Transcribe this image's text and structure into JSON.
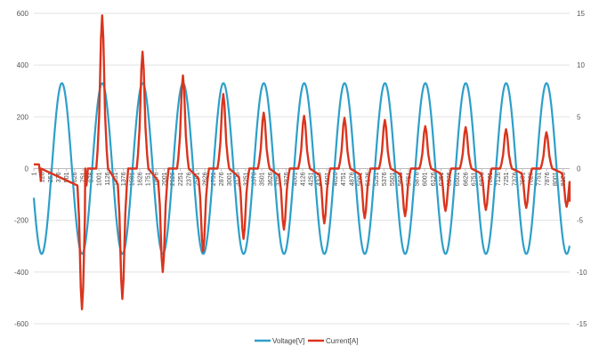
{
  "chart_data": {
    "type": "line",
    "y_left": {
      "min": -600,
      "max": 600,
      "ticks": [
        -600,
        -400,
        -200,
        0,
        200,
        400,
        600
      ],
      "tick_labels": [
        "-600",
        "-400",
        "-200",
        "0",
        "200",
        "400",
        "600"
      ]
    },
    "y_right": {
      "min": -15,
      "max": 15,
      "ticks": [
        -15,
        -10,
        -5,
        0,
        5,
        10,
        15
      ],
      "tick_labels": [
        "-15",
        "-10",
        "-5",
        "0",
        "5",
        "10",
        "15"
      ]
    },
    "x": {
      "min": 1,
      "max": 8226,
      "tick_step": 125,
      "tick_labels": [
        "1",
        "126",
        "251",
        "376",
        "501",
        "626",
        "751",
        "876",
        "1001",
        "1126",
        "1251",
        "1376",
        "1501",
        "1626",
        "1751",
        "1876",
        "2001",
        "2126",
        "2251",
        "2376",
        "2501",
        "2626",
        "2751",
        "2876",
        "3001",
        "3126",
        "3251",
        "3376",
        "3501",
        "3626",
        "3751",
        "3876",
        "4001",
        "4126",
        "4251",
        "4376",
        "4501",
        "4626",
        "4751",
        "4876",
        "5001",
        "5126",
        "5251",
        "5376",
        "5501",
        "5626",
        "5751",
        "5876",
        "6001",
        "6126",
        "6251",
        "6376",
        "6501",
        "6626",
        "6751",
        "6876",
        "7001",
        "7126",
        "7251",
        "7376",
        "7501",
        "7626",
        "7751",
        "7876",
        "8001",
        "8126"
      ]
    },
    "grid": "horizontal",
    "legend_position": "bottom",
    "series": [
      {
        "name": "Voltage[V]",
        "axis": "left",
        "color": "#2e9fc9",
        "waveform": "sine",
        "amplitude": 330,
        "period_samples": 620,
        "phase_deg": 200,
        "x_start": 1,
        "x_end": 8226
      },
      {
        "name": "Current[A]",
        "axis": "right",
        "color": "#d9351e",
        "segments": [
          {
            "x": [
              1,
              80
            ],
            "y": [
              0.4,
              0.4
            ]
          },
          {
            "x": [
              80,
              110
            ],
            "y": [
              0.4,
              -1.2
            ]
          },
          {
            "x": [
              110,
              790
            ],
            "y": [
              0,
              0
            ]
          }
        ],
        "pulse_train": {
          "period_samples": 620,
          "first_positive_peak_x": 1050,
          "first_negative_peak_x": 740,
          "positive_peaks": [
            14.8,
            11.3,
            9.0,
            7.2,
            5.4,
            5.1,
            4.9,
            4.7,
            4.1,
            4.0,
            3.8,
            3.5,
            3.4
          ],
          "negative_peaks": [
            -13.6,
            -12.6,
            -10.0,
            -8.0,
            -6.8,
            -5.9,
            -5.3,
            -4.8,
            -4.6,
            -4.1,
            -4.0,
            -3.8,
            -3.7
          ]
        },
        "x_end": 8226,
        "end_value": -3.2
      }
    ]
  }
}
